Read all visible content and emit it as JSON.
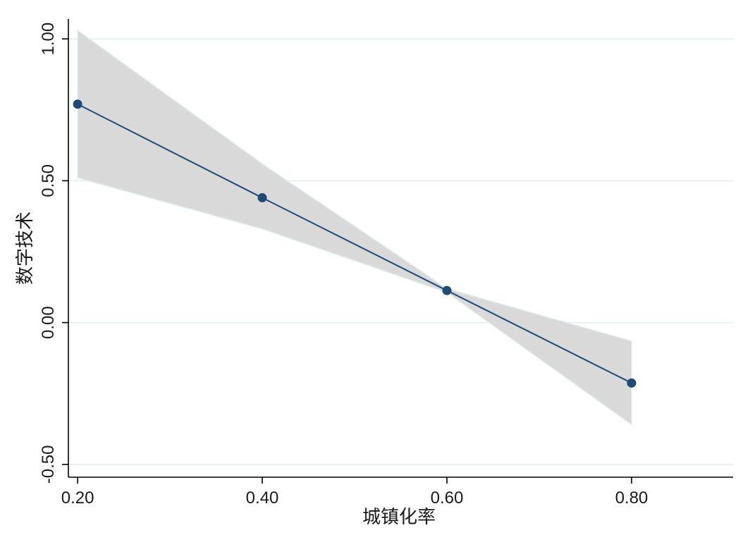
{
  "chart_data": {
    "type": "line",
    "xlabel": "城镇化率",
    "ylabel": "数字技术",
    "x": [
      0.2,
      0.4,
      0.6,
      0.8
    ],
    "x_tick_labels": [
      "0.20",
      "0.40",
      "0.60",
      "0.80"
    ],
    "y_ticks": [
      -0.5,
      0.0,
      0.5,
      1.0
    ],
    "y_tick_labels": [
      "-0.50",
      "0.00",
      "0.50",
      "1.00"
    ],
    "xlim": [
      0.19,
      0.91
    ],
    "ylim": [
      -0.545,
      1.07
    ],
    "grid": true,
    "series": [
      {
        "values": [
          0.77,
          0.44,
          0.113,
          -0.213
        ],
        "ci_lower": [
          0.51,
          0.33,
          0.106,
          -0.36
        ],
        "ci_upper": [
          1.03,
          0.56,
          0.12,
          -0.065
        ],
        "color": "#1f4a73"
      }
    ]
  }
}
